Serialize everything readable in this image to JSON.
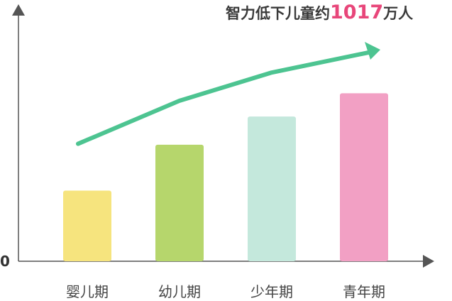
{
  "chart_data": {
    "type": "bar",
    "title_prefix": "智力低下儿童约",
    "title_number": "1017",
    "title_suffix": "万人",
    "categories": [
      "婴儿期",
      "幼儿期",
      "少年期",
      "青年期"
    ],
    "values": [
      100,
      165,
      205,
      238
    ],
    "ylim": [
      0,
      360
    ],
    "y_tick_label": "0",
    "colors": [
      "#f6e47e",
      "#b6d66c",
      "#c4e8dc",
      "#f2a0c4"
    ],
    "trend_color": "#4dc491",
    "axis_color": "#555555",
    "grid": false
  }
}
